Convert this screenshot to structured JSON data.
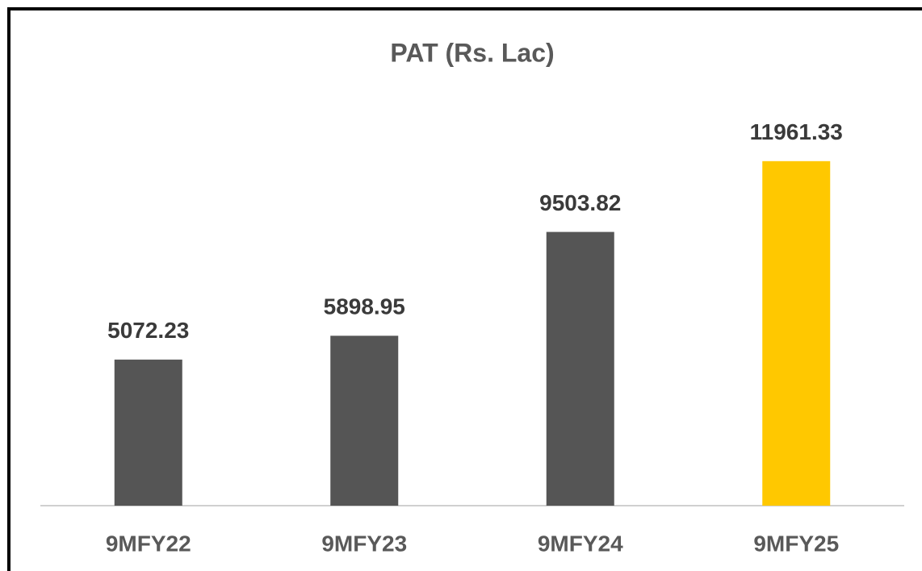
{
  "chart_data": {
    "type": "bar",
    "title": "PAT (Rs. Lac)",
    "categories": [
      "9MFY22",
      "9MFY23",
      "9MFY24",
      "9MFY25"
    ],
    "values": [
      5072.23,
      5898.95,
      9503.82,
      11961.33
    ],
    "colors": [
      "#555555",
      "#555555",
      "#555555",
      "#ffc800"
    ],
    "ylim": [
      0,
      14000
    ]
  }
}
